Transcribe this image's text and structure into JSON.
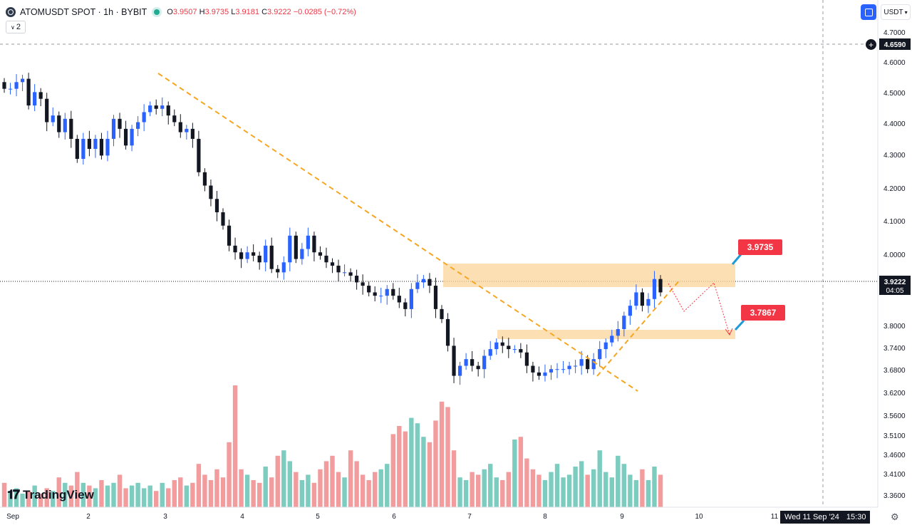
{
  "header": {
    "symbol": "ATOMUSDT SPOT · 1h · BYBIT",
    "o_label": "O",
    "o": "3.9507",
    "h_label": "H",
    "h": "3.9735",
    "l_label": "L",
    "l": "3.9181",
    "c_label": "C",
    "c": "3.9222",
    "change": "−0.0285 (−0.72%)",
    "layout_count": "2",
    "currency": "USDT"
  },
  "price_axis": {
    "ticks": [
      "4.7000",
      "4.6000",
      "4.5000",
      "4.4000",
      "4.3000",
      "4.2000",
      "4.1000",
      "4.0000",
      "3.8000",
      "3.7400",
      "3.6800",
      "3.6200",
      "3.5600",
      "3.5100",
      "3.4600",
      "3.4100",
      "3.3600"
    ],
    "crosshair_price": "4.6590",
    "last_price": "3.9222",
    "countdown": "04:05",
    "last_price_color": "#131722"
  },
  "time_axis": {
    "labels": [
      "Sep",
      "2",
      "3",
      "4",
      "5",
      "6",
      "7",
      "8",
      "9",
      "10",
      "11"
    ],
    "crosshair_date": "Wed 11 Sep '24",
    "crosshair_time": "15:30"
  },
  "annotations": {
    "resistance_label": "3.9735",
    "support_label": "3.7867",
    "label_color": "#f23645",
    "zone_color": "#fbd59a",
    "trendline_color": "#f5a623"
  },
  "colors": {
    "up": "#2962ff",
    "down": "#131722",
    "vol_up": "#7ccdc0",
    "vol_down": "#f29c9e"
  },
  "branding": {
    "name": "TradingView"
  },
  "chart_data": {
    "type": "candlestick",
    "x_labels": [
      "Sep",
      "2",
      "3",
      "4",
      "5",
      "6",
      "7",
      "8",
      "9",
      "10",
      "11"
    ],
    "y_range": [
      3.58,
      4.72
    ],
    "resistance_zone": [
      3.93,
      3.975
    ],
    "support_zone": [
      3.762,
      3.788
    ],
    "closes": [
      4.53,
      4.53,
      4.55,
      4.56,
      4.48,
      4.52,
      4.5,
      4.43,
      4.45,
      4.4,
      4.44,
      4.38,
      4.32,
      4.38,
      4.35,
      4.38,
      4.33,
      4.38,
      4.44,
      4.41,
      4.36,
      4.41,
      4.43,
      4.46,
      4.48,
      4.47,
      4.48,
      4.45,
      4.43,
      4.4,
      4.41,
      4.38,
      4.28,
      4.24,
      4.2,
      4.16,
      4.12,
      4.06,
      4.04,
      4.02,
      4.04,
      4.03,
      4.01,
      4.06,
      3.99,
      3.98,
      4.01,
      4.09,
      4.02,
      4.05,
      4.09,
      4.04,
      4.03,
      4.01,
      4.0,
      3.98,
      3.98,
      3.97,
      3.95,
      3.94,
      3.92,
      3.91,
      3.91,
      3.93,
      3.91,
      3.89,
      3.87,
      3.93,
      3.95,
      3.96,
      3.94,
      3.87,
      3.84,
      3.76,
      3.67,
      3.7,
      3.72,
      3.7,
      3.69,
      3.73,
      3.75,
      3.77,
      3.76,
      3.75,
      3.75,
      3.74,
      3.7,
      3.68,
      3.67,
      3.68,
      3.69,
      3.69,
      3.69,
      3.7,
      3.7,
      3.72,
      3.69,
      3.72,
      3.75,
      3.77,
      3.79,
      3.81,
      3.85,
      3.88,
      3.92,
      3.88,
      3.9,
      3.96,
      3.92
    ],
    "volumes": [
      0.9,
      0.6,
      0.7,
      0.5,
      0.6,
      0.8,
      0.5,
      0.7,
      0.6,
      1.1,
      0.9,
      0.8,
      1.3,
      0.9,
      0.8,
      0.7,
      1.0,
      0.8,
      0.9,
      1.2,
      0.7,
      0.8,
      0.9,
      0.7,
      0.8,
      0.6,
      0.9,
      0.7,
      1.0,
      1.1,
      0.8,
      0.9,
      1.6,
      1.2,
      1.0,
      1.4,
      1.1,
      2.4,
      4.5,
      1.4,
      1.2,
      1.0,
      0.9,
      1.5,
      1.1,
      1.9,
      2.1,
      1.7,
      1.3,
      1.0,
      1.2,
      0.9,
      1.4,
      1.7,
      1.9,
      1.3,
      1.1,
      2.1,
      1.7,
      1.2,
      1.0,
      1.3,
      1.4,
      1.6,
      2.7,
      3.0,
      2.8,
      3.3,
      3.1,
      2.6,
      2.4,
      3.2,
      3.9,
      3.7,
      2.1,
      1.1,
      1.0,
      1.3,
      1.2,
      1.4,
      1.6,
      1.1,
      1.0,
      1.3,
      2.5,
      2.6,
      1.8,
      1.4,
      1.2,
      1.0,
      1.3,
      1.6,
      1.1,
      1.2,
      1.5,
      1.7,
      1.2,
      1.4,
      2.1,
      1.3,
      1.1,
      1.9,
      1.6,
      1.2,
      1.0,
      1.4,
      1.0,
      1.5,
      1.2
    ]
  }
}
